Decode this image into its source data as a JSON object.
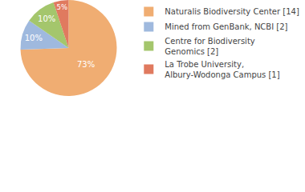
{
  "chart_data": {
    "type": "pie",
    "categories": [
      "Naturalis Biodiversity Center [14]",
      "Mined from GenBank, NCBI [2]",
      "Centre for Biodiversity\nGenomics [2]",
      "La Trobe University,\nAlbury-Wodonga Campus [1]"
    ],
    "values": [
      73,
      10,
      10,
      5
    ],
    "value_labels": [
      "73%",
      "10%",
      "10%",
      "5%"
    ],
    "colors": [
      "#f0ad72",
      "#9fb9de",
      "#a4c66c",
      "#e07a5f"
    ],
    "data_labels": true,
    "legend": "top right"
  }
}
